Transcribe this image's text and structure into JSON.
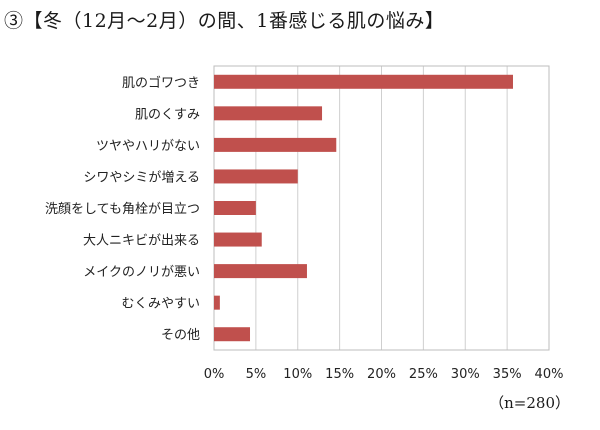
{
  "chart_data": {
    "type": "bar",
    "orientation": "horizontal",
    "title": "③【冬（12月～2月）の間、1番感じる肌の悩み】",
    "categories": [
      "肌のゴワつき",
      "肌のくすみ",
      "ツヤやハリがない",
      "シワやシミが増える",
      "洗顔をしても角栓が目立つ",
      "大人ニキビが出来る",
      "メイクのノリが悪い",
      "むくみやすい",
      "その他"
    ],
    "values": [
      35.7,
      12.9,
      14.6,
      10.0,
      5.0,
      5.7,
      11.1,
      0.7,
      4.3
    ],
    "xlim": [
      0,
      40
    ],
    "x_ticks": [
      0,
      5,
      10,
      15,
      20,
      25,
      30,
      35,
      40
    ],
    "x_tick_labels": [
      "0%",
      "5%",
      "10%",
      "15%",
      "20%",
      "25%",
      "30%",
      "35%",
      "40%"
    ],
    "xlabel": "",
    "ylabel": "",
    "grid": true,
    "bar_color": "#c0504d",
    "note": "（n=280）"
  }
}
